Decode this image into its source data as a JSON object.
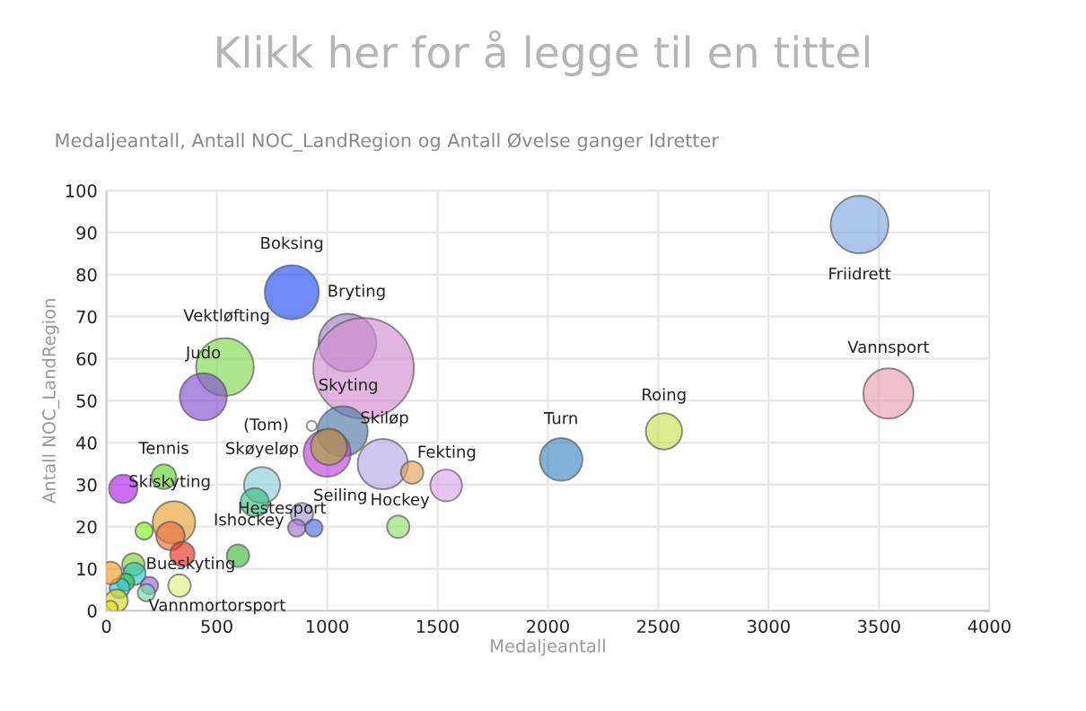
{
  "chart_data": {
    "type": "bubble",
    "title": "Klikk her for å legge til en tittel",
    "subtitle": "Medaljeantall, Antall NOC_LandRegion og Antall Øvelse ganger Idretter",
    "xlabel": "Medaljeantall",
    "ylabel": "Antall NOC_LandRegion",
    "x": [
      840,
      1092,
      1165,
      537,
      439,
      930,
      1070,
      1252,
      1000,
      1008,
      1385,
      1539,
      705,
      672,
      260,
      76,
      886,
      862,
      940,
      1322,
      306,
      171,
      290,
      344,
      596,
      122,
      127,
      87,
      60,
      19,
      195,
      181,
      331,
      46,
      19,
      2060,
      2526,
      3412,
      3543
    ],
    "values": [
      75.8,
      63.8,
      57.7,
      58,
      50.9,
      44,
      42.7,
      34.9,
      37.5,
      39,
      32.9,
      29.8,
      29.9,
      25.8,
      31.9,
      29,
      23,
      19.7,
      19.7,
      20,
      21,
      19,
      17.8,
      13.5,
      13.1,
      11,
      8.8,
      6.8,
      5.4,
      9,
      6,
      4.3,
      6,
      2.4,
      0.7,
      36,
      42.7,
      91.9,
      51.7
    ],
    "sizes": [
      0.29,
      0.33,
      1,
      0.33,
      0.22,
      0.01,
      0.25,
      0.25,
      0.22,
      0.13,
      0.05,
      0.1,
      0.13,
      0.08,
      0.06,
      0.08,
      0.05,
      0.03,
      0.03,
      0.05,
      0.18,
      0.03,
      0.08,
      0.06,
      0.05,
      0.05,
      0.05,
      0.03,
      0.04,
      0.05,
      0.03,
      0.03,
      0.05,
      0.05,
      0.02,
      0.18,
      0.13,
      0.33,
      0.25
    ],
    "colors": [
      "#1f4ff0",
      "#a47fc4",
      "#d28ed0",
      "#7fd850",
      "#8250d0",
      "#ffffff",
      "#4f79a8",
      "#b8a8e8",
      "#c040e0",
      "#a8a830",
      "#e0a050",
      "#d8a8e8",
      "#88d0dc",
      "#38c080",
      "#60d030",
      "#b020e8",
      "#a098d0",
      "#a070d8",
      "#5868e0",
      "#90e070",
      "#e8a030",
      "#80f020",
      "#e07040",
      "#e83020",
      "#40b840",
      "#80d030",
      "#30c8c0",
      "#20d040",
      "#30c0d8",
      "#f0a020",
      "#a060e8",
      "#70d8a8",
      "#e0f080",
      "#d8d820",
      "#e0e020",
      "#3a8ac8",
      "#c8e050",
      "#80a8e0",
      "#e8a0b0"
    ],
    "xlim": [
      0,
      4000
    ],
    "xticks": [
      0,
      500,
      1000,
      1500,
      2000,
      2500,
      3000,
      3500,
      4000
    ],
    "ylim": [
      0,
      100
    ],
    "yticks": [
      0,
      10,
      20,
      30,
      40,
      50,
      60,
      70,
      80,
      90,
      100
    ],
    "grid": true,
    "annotations": [
      {
        "text": "Boksing",
        "x": 840,
        "y": 75.8
      },
      {
        "text": "Bryting",
        "x": 1092,
        "y": 63.8
      },
      {
        "text": "Vektløfting",
        "x": 537,
        "y": 58
      },
      {
        "text": "Judo",
        "x": 439,
        "y": 50.9
      },
      {
        "text": "Skyting",
        "x": 1070,
        "y": 42.7
      },
      {
        "text": "(Tom)",
        "x": 930,
        "y": 44
      },
      {
        "text": "Skiløp",
        "x": 1252,
        "y": 34.9
      },
      {
        "text": "Tennis",
        "x": 260,
        "y": 31.9
      },
      {
        "text": "Skøyeløp",
        "x": 705,
        "y": 29.9
      },
      {
        "text": "Seiling",
        "x": 1000,
        "y": 37.5
      },
      {
        "text": "Fekting",
        "x": 1539,
        "y": 29.8
      },
      {
        "text": "Skiskyting",
        "x": 306,
        "y": 21
      },
      {
        "text": "Hestesport",
        "x": 886,
        "y": 23
      },
      {
        "text": "Hockey",
        "x": 1322,
        "y": 20
      },
      {
        "text": "Ishockey",
        "x": 344,
        "y": 13.5
      },
      {
        "text": "Bueskyting",
        "x": 122,
        "y": 11
      },
      {
        "text": "Vannmortorsport",
        "x": 46,
        "y": 2.4
      },
      {
        "text": "Turn",
        "x": 2060,
        "y": 36
      },
      {
        "text": "Roing",
        "x": 2526,
        "y": 42.7
      },
      {
        "text": "Friidrett",
        "x": 3412,
        "y": 91.9
      },
      {
        "text": "Vannsport",
        "x": 3543,
        "y": 51.7
      }
    ]
  }
}
